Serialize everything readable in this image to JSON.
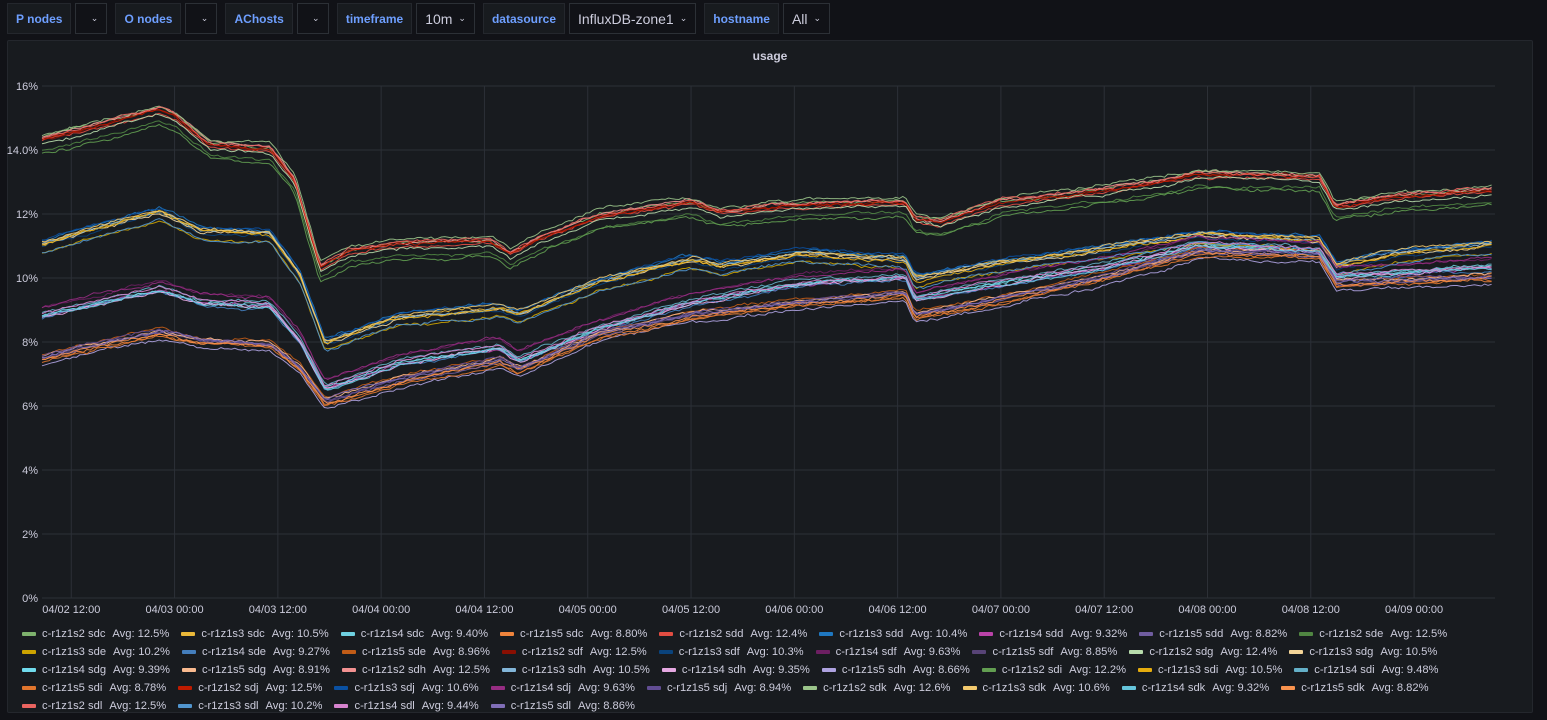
{
  "variables": [
    {
      "label": "P nodes",
      "value": ""
    },
    {
      "label": "O nodes",
      "value": ""
    },
    {
      "label": "AChosts",
      "value": ""
    },
    {
      "label": "timeframe",
      "value": "10m"
    },
    {
      "label": "datasource",
      "value": "InfluxDB-zone1"
    },
    {
      "label": "hostname",
      "value": "All"
    }
  ],
  "chart_data": {
    "type": "line",
    "title": "usage",
    "x_unit": "hours since 04/02 12:00",
    "xlim": [
      -3.4,
      165.4
    ],
    "ylim": [
      0,
      16
    ],
    "yticks": [
      {
        "v": 0,
        "label": "0%"
      },
      {
        "v": 2,
        "label": "2%"
      },
      {
        "v": 4,
        "label": "4%"
      },
      {
        "v": 6,
        "label": "6%"
      },
      {
        "v": 8,
        "label": "8%"
      },
      {
        "v": 10,
        "label": "10%"
      },
      {
        "v": 12,
        "label": "12%"
      },
      {
        "v": 14,
        "label": "14.0%"
      },
      {
        "v": 16,
        "label": "16%"
      }
    ],
    "xticks": [
      {
        "v": 0,
        "label": "04/02 12:00"
      },
      {
        "v": 12,
        "label": "04/03 00:00"
      },
      {
        "v": 24,
        "label": "04/03 12:00"
      },
      {
        "v": 36,
        "label": "04/04 00:00"
      },
      {
        "v": 48,
        "label": "04/04 12:00"
      },
      {
        "v": 60,
        "label": "04/05 00:00"
      },
      {
        "v": 72,
        "label": "04/05 12:00"
      },
      {
        "v": 84,
        "label": "04/06 00:00"
      },
      {
        "v": 96,
        "label": "04/06 12:00"
      },
      {
        "v": 108,
        "label": "04/07 00:00"
      },
      {
        "v": 120,
        "label": "04/07 12:00"
      },
      {
        "v": 132,
        "label": "04/08 00:00"
      },
      {
        "v": 144,
        "label": "04/08 12:00"
      },
      {
        "v": 156,
        "label": "04/09 00:00"
      }
    ],
    "grid": true,
    "legend_placement": "bottom",
    "legend_avg_label": "Avg:",
    "group_profiles": {
      "s2": [
        [
          -3.4,
          14.3
        ],
        [
          0,
          14.5
        ],
        [
          10.3,
          15.2
        ],
        [
          12.1,
          15.0
        ],
        [
          16.1,
          14.1
        ],
        [
          23.1,
          14.0
        ],
        [
          26,
          13.0
        ],
        [
          28.9,
          10.3
        ],
        [
          32.4,
          10.8
        ],
        [
          38.2,
          11.0
        ],
        [
          48.7,
          11.1
        ],
        [
          51,
          10.7
        ],
        [
          54.5,
          11.2
        ],
        [
          61.4,
          11.9
        ],
        [
          72,
          12.3
        ],
        [
          75.4,
          12.0
        ],
        [
          82.3,
          12.2
        ],
        [
          92.8,
          12.3
        ],
        [
          96.9,
          12.3
        ],
        [
          98,
          11.8
        ],
        [
          101,
          11.7
        ],
        [
          108,
          12.3
        ],
        [
          120,
          12.7
        ],
        [
          131,
          13.2
        ],
        [
          145,
          13.1
        ],
        [
          146.8,
          12.2
        ],
        [
          154.4,
          12.5
        ],
        [
          165.4,
          12.7
        ]
      ],
      "s3": [
        [
          -3.4,
          11.0
        ],
        [
          10.3,
          12.0
        ],
        [
          15,
          11.4
        ],
        [
          23.1,
          11.3
        ],
        [
          26.6,
          10.0
        ],
        [
          29.5,
          7.9
        ],
        [
          38.2,
          8.7
        ],
        [
          49.8,
          9.0
        ],
        [
          52,
          8.8
        ],
        [
          61.4,
          9.8
        ],
        [
          72,
          10.5
        ],
        [
          75.4,
          10.3
        ],
        [
          84.7,
          10.7
        ],
        [
          96.9,
          10.5
        ],
        [
          98,
          9.9
        ],
        [
          108,
          10.4
        ],
        [
          120,
          10.8
        ],
        [
          131,
          11.3
        ],
        [
          145,
          11.1
        ],
        [
          147,
          10.3
        ],
        [
          154.4,
          10.7
        ],
        [
          165.4,
          11.0
        ]
      ],
      "s4": [
        [
          -3.4,
          8.8
        ],
        [
          10.3,
          9.6
        ],
        [
          15,
          9.2
        ],
        [
          23.1,
          9.1
        ],
        [
          26.6,
          8.0
        ],
        [
          29.5,
          6.5
        ],
        [
          38.2,
          7.3
        ],
        [
          49.8,
          7.8
        ],
        [
          52,
          7.4
        ],
        [
          61.4,
          8.4
        ],
        [
          72,
          9.2
        ],
        [
          84.7,
          9.8
        ],
        [
          96.9,
          10.0
        ],
        [
          98,
          9.3
        ],
        [
          108,
          9.8
        ],
        [
          120,
          10.3
        ],
        [
          131,
          11.0
        ],
        [
          145,
          10.8
        ],
        [
          147,
          10.0
        ],
        [
          165.4,
          10.3
        ]
      ],
      "s5": [
        [
          -3.4,
          7.5
        ],
        [
          10.3,
          8.3
        ],
        [
          15,
          8.0
        ],
        [
          23.1,
          7.9
        ],
        [
          26.6,
          7.2
        ],
        [
          29.5,
          6.1
        ],
        [
          38.2,
          6.8
        ],
        [
          49.8,
          7.4
        ],
        [
          52,
          7.1
        ],
        [
          61.4,
          8.2
        ],
        [
          72,
          8.8
        ],
        [
          84.7,
          9.2
        ],
        [
          96.9,
          9.5
        ],
        [
          98,
          8.8
        ],
        [
          108,
          9.3
        ],
        [
          120,
          10.0
        ],
        [
          131,
          10.8
        ],
        [
          145,
          10.7
        ],
        [
          147,
          9.8
        ],
        [
          165.4,
          10.0
        ]
      ]
    },
    "series": [
      {
        "name": "c-r1z1s2 sdc",
        "avg": "12.5%",
        "color": "#7eb26d",
        "group": "s2",
        "offset": 0.1
      },
      {
        "name": "c-r1z1s3 sdc",
        "avg": "10.5%",
        "color": "#eab839",
        "group": "s3",
        "offset": 0.1
      },
      {
        "name": "c-r1z1s4 sdc",
        "avg": "9.40%",
        "color": "#6ed0e0",
        "group": "s4",
        "offset": 0.05
      },
      {
        "name": "c-r1z1s5 sdc",
        "avg": "8.80%",
        "color": "#ef843c",
        "group": "s5",
        "offset": -0.05
      },
      {
        "name": "c-r1z1s2 sdd",
        "avg": "12.4%",
        "color": "#e24d42",
        "group": "s2",
        "offset": 0.0
      },
      {
        "name": "c-r1z1s3 sdd",
        "avg": "10.4%",
        "color": "#1f78c1",
        "group": "s3",
        "offset": 0.2
      },
      {
        "name": "c-r1z1s4 sdd",
        "avg": "9.32%",
        "color": "#ba43a9",
        "group": "s4",
        "offset": 0.0
      },
      {
        "name": "c-r1z1s5 sdd",
        "avg": "8.82%",
        "color": "#705da0",
        "group": "s5",
        "offset": 0.0
      },
      {
        "name": "c-r1z1s2 sde",
        "avg": "12.5%",
        "color": "#508642",
        "group": "s2",
        "offset": -0.3
      },
      {
        "name": "c-r1z1s3 sde",
        "avg": "10.2%",
        "color": "#cca300",
        "group": "s3",
        "offset": -0.2
      },
      {
        "name": "c-r1z1s4 sde",
        "avg": "9.27%",
        "color": "#447ebc",
        "group": "s4",
        "offset": -0.05
      },
      {
        "name": "c-r1z1s5 sde",
        "avg": "8.96%",
        "color": "#c15c17",
        "group": "s5",
        "offset": 0.15
      },
      {
        "name": "c-r1z1s2 sdf",
        "avg": "12.5%",
        "color": "#890f02",
        "group": "s2",
        "offset": 0.05
      },
      {
        "name": "c-r1z1s3 sdf",
        "avg": "10.3%",
        "color": "#0a437c",
        "group": "s3",
        "offset": 0.0
      },
      {
        "name": "c-r1z1s4 sdf",
        "avg": "9.63%",
        "color": "#6d1f62",
        "group": "s4",
        "offset": 0.3
      },
      {
        "name": "c-r1z1s5 sdf",
        "avg": "8.85%",
        "color": "#584477",
        "group": "s5",
        "offset": 0.05
      },
      {
        "name": "c-r1z1s2 sdg",
        "avg": "12.4%",
        "color": "#b7dbab",
        "group": "s2",
        "offset": -0.1
      },
      {
        "name": "c-r1z1s3 sdg",
        "avg": "10.5%",
        "color": "#f4d598",
        "group": "s3",
        "offset": 0.05
      },
      {
        "name": "c-r1z1s4 sdg",
        "avg": "9.39%",
        "color": "#70dbed",
        "group": "s4",
        "offset": 0.05
      },
      {
        "name": "c-r1z1s5 sdg",
        "avg": "8.91%",
        "color": "#f9ba8f",
        "group": "s5",
        "offset": 0.1
      },
      {
        "name": "c-r1z1s2 sdh",
        "avg": "12.5%",
        "color": "#f29191",
        "group": "s2",
        "offset": 0.1
      },
      {
        "name": "c-r1z1s3 sdh",
        "avg": "10.5%",
        "color": "#82b5d8",
        "group": "s3",
        "offset": 0.1
      },
      {
        "name": "c-r1z1s4 sdh",
        "avg": "9.35%",
        "color": "#e5a8e2",
        "group": "s4",
        "offset": 0.0
      },
      {
        "name": "c-r1z1s5 sdh",
        "avg": "8.66%",
        "color": "#aea2e0",
        "group": "s5",
        "offset": -0.2
      },
      {
        "name": "c-r1z1s2 sdi",
        "avg": "12.2%",
        "color": "#629e51",
        "group": "s2",
        "offset": -0.4
      },
      {
        "name": "c-r1z1s3 sdi",
        "avg": "10.5%",
        "color": "#e5ac0e",
        "group": "s3",
        "offset": 0.05
      },
      {
        "name": "c-r1z1s4 sdi",
        "avg": "9.48%",
        "color": "#64b0c8",
        "group": "s4",
        "offset": 0.15
      },
      {
        "name": "c-r1z1s5 sdi",
        "avg": "8.78%",
        "color": "#e0752d",
        "group": "s5",
        "offset": -0.1
      },
      {
        "name": "c-r1z1s2 sdj",
        "avg": "12.5%",
        "color": "#bf1b00",
        "group": "s2",
        "offset": 0.05
      },
      {
        "name": "c-r1z1s3 sdj",
        "avg": "10.6%",
        "color": "#0a50a1",
        "group": "s3",
        "offset": 0.2
      },
      {
        "name": "c-r1z1s4 sdj",
        "avg": "9.63%",
        "color": "#962d82",
        "group": "s4",
        "offset": 0.3
      },
      {
        "name": "c-r1z1s5 sdj",
        "avg": "8.94%",
        "color": "#614d93",
        "group": "s5",
        "offset": 0.1
      },
      {
        "name": "c-r1z1s2 sdk",
        "avg": "12.6%",
        "color": "#9ac48a",
        "group": "s2",
        "offset": 0.2
      },
      {
        "name": "c-r1z1s3 sdk",
        "avg": "10.6%",
        "color": "#f2c96d",
        "group": "s3",
        "offset": 0.15
      },
      {
        "name": "c-r1z1s4 sdk",
        "avg": "9.32%",
        "color": "#65c5db",
        "group": "s4",
        "offset": 0.0
      },
      {
        "name": "c-r1z1s5 sdk",
        "avg": "8.82%",
        "color": "#f9934e",
        "group": "s5",
        "offset": 0.0
      },
      {
        "name": "c-r1z1s2 sdl",
        "avg": "12.5%",
        "color": "#ea6460",
        "group": "s2",
        "offset": 0.1
      },
      {
        "name": "c-r1z1s3 sdl",
        "avg": "10.2%",
        "color": "#5195ce",
        "group": "s3",
        "offset": -0.2
      },
      {
        "name": "c-r1z1s4 sdl",
        "avg": "9.44%",
        "color": "#d683ce",
        "group": "s4",
        "offset": 0.1
      },
      {
        "name": "c-r1z1s5 sdl",
        "avg": "8.86%",
        "color": "#806eb7",
        "group": "s5",
        "offset": 0.05
      }
    ]
  }
}
